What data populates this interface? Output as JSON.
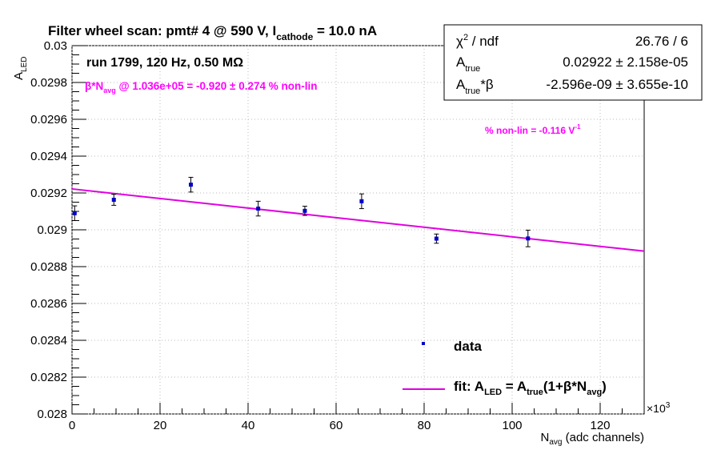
{
  "title_parts": {
    "prefix": "Filter wheel scan: pmt#   4 @   590 V, I",
    "sub": "cathode",
    "suffix": "   = 10.0 nA"
  },
  "run_info": "run 1799, 120 Hz, 0.50 MΩ",
  "beta_line": {
    "pre": "β*N",
    "sub": "avg",
    "post": " @ 1.036e+05 = -0.920 ± 0.274 % non-lin"
  },
  "nonlin_slope": {
    "text": "% non-lin = -0.116 V",
    "sup": "-1"
  },
  "stats_box": {
    "rows": [
      {
        "label_main": "χ",
        "label_sup": "2",
        "label_rest": " / ndf",
        "value": "26.76 / 6"
      },
      {
        "label_main": "A",
        "label_sub": "true",
        "label_rest": "",
        "value": "0.02922 ± 2.158e-05"
      },
      {
        "label_main": "A",
        "label_sub": "true",
        "label_rest": "*β",
        "value": "-2.596e-09 ± 3.655e-10"
      }
    ]
  },
  "legend": {
    "data_label": "data",
    "fit_label": {
      "p1": "fit: A",
      "s1": "LED",
      "p2": " = A",
      "s2": "true",
      "p3": "(1+β*N",
      "s3": "avg",
      "p4": ")"
    }
  },
  "axis_labels": {
    "y_main": "A",
    "y_sub": "LED",
    "x_main": "N",
    "x_sub": "avg",
    "x_rest": " (adc channels)",
    "x_multiplier": "×10",
    "x_multiplier_sup": "3"
  },
  "colors": {
    "data": "#0000cc",
    "fit": "#e000e0",
    "axis": "#000000",
    "grid": "#bbbbbb",
    "annotation": "#ff00ff"
  },
  "chart_data": {
    "type": "scatter",
    "title": "Filter wheel scan: pmt#   4 @   590 V, Icathode   = 10.0 nA",
    "xlabel": "Navg (adc channels)",
    "ylabel": "ALED",
    "xlim": [
      0,
      130
    ],
    "ylim": [
      0.028,
      0.03
    ],
    "x_scale_factor": "×10^3",
    "grid": "dotted",
    "x_ticks": [
      0,
      20,
      40,
      60,
      80,
      100,
      120
    ],
    "y_ticks": [
      0.028,
      0.0282,
      0.0284,
      0.0286,
      0.0288,
      0.029,
      0.0292,
      0.0294,
      0.0296,
      0.0298,
      0.03
    ],
    "y_tick_labels": [
      "0.028",
      "0.0282",
      "0.0284",
      "0.0286",
      "0.0288",
      "0.029",
      "0.0292",
      "0.0294",
      "0.0296",
      "0.0298",
      "0.03"
    ],
    "series": [
      {
        "name": "data",
        "points": [
          {
            "x": 0.6,
            "y": 0.02909,
            "err": 4e-05
          },
          {
            "x": 9.5,
            "y": 0.029163,
            "err": 3e-05
          },
          {
            "x": 27.0,
            "y": 0.029245,
            "err": 4e-05
          },
          {
            "x": 42.3,
            "y": 0.029115,
            "err": 4e-05
          },
          {
            "x": 52.9,
            "y": 0.029103,
            "err": 2.5e-05
          },
          {
            "x": 65.8,
            "y": 0.029155,
            "err": 4e-05
          },
          {
            "x": 82.8,
            "y": 0.028952,
            "err": 2.5e-05
          },
          {
            "x": 103.6,
            "y": 0.028953,
            "err": 4.5e-05
          }
        ]
      },
      {
        "name": "fit: ALED = Atrue(1+β*Navg)",
        "type": "line",
        "x": [
          0,
          130
        ],
        "y": [
          0.029222,
          0.028884
        ]
      }
    ]
  }
}
